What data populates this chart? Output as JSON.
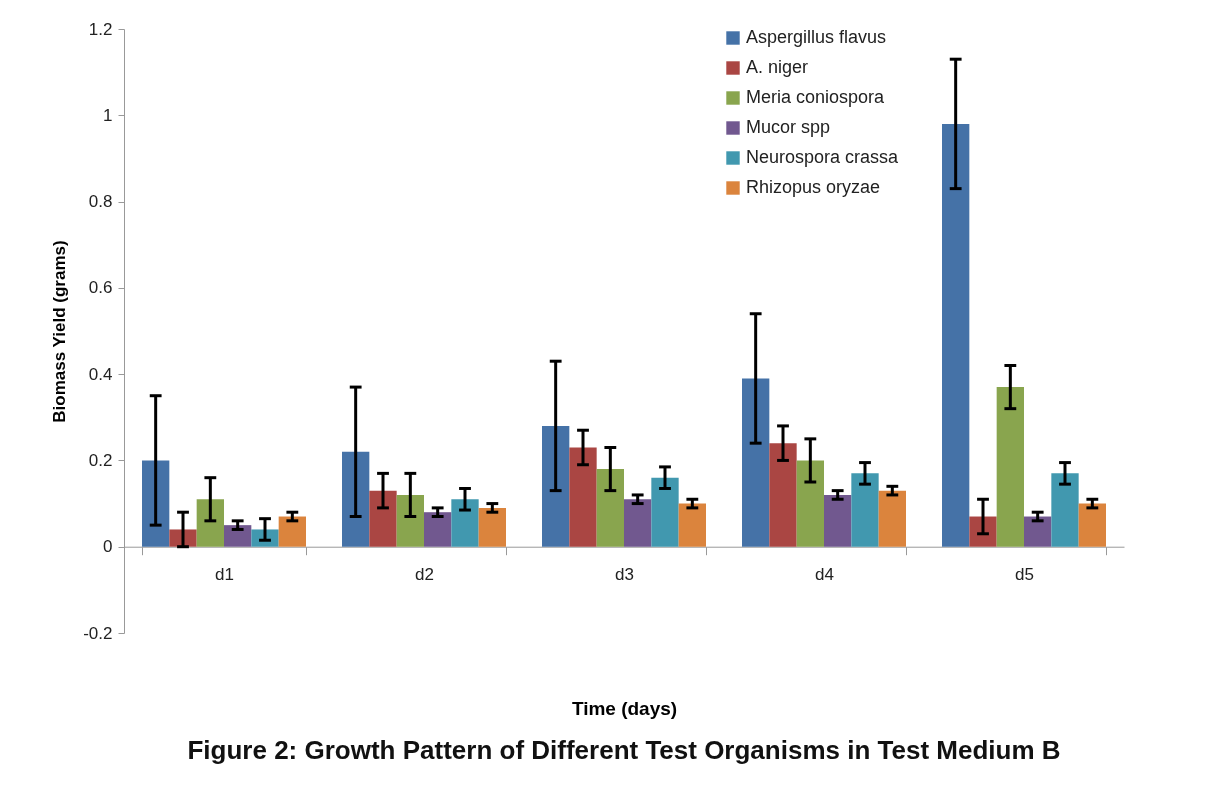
{
  "chart_data": {
    "type": "bar",
    "title": "Figure 2: Growth Pattern of Different Test Organisms in Test Medium  B",
    "xlabel": "Time (days)",
    "ylabel": "Biomass Yield (grams)",
    "categories": [
      "d1",
      "d2",
      "d3",
      "d4",
      "d5"
    ],
    "series": [
      {
        "name": "Aspergillus flavus",
        "color": "#4572a7",
        "values": [
          0.2,
          0.22,
          0.28,
          0.39,
          0.98
        ],
        "errors": [
          0.15,
          0.15,
          0.15,
          0.15,
          0.15
        ]
      },
      {
        "name": "A. niger",
        "color": "#aa4643",
        "values": [
          0.04,
          0.13,
          0.23,
          0.24,
          0.07
        ],
        "errors": [
          0.04,
          0.04,
          0.04,
          0.04,
          0.04
        ]
      },
      {
        "name": "Meria coniospora",
        "color": "#89a54e",
        "values": [
          0.11,
          0.12,
          0.18,
          0.2,
          0.37
        ],
        "errors": [
          0.05,
          0.05,
          0.05,
          0.05,
          0.05
        ]
      },
      {
        "name": "Mucor spp",
        "color": "#71588f",
        "values": [
          0.05,
          0.08,
          0.11,
          0.12,
          0.07
        ],
        "errors": [
          0.01,
          0.01,
          0.01,
          0.01,
          0.01
        ]
      },
      {
        "name": "Neurospora crassa",
        "color": "#4198af",
        "values": [
          0.04,
          0.11,
          0.16,
          0.17,
          0.17
        ],
        "errors": [
          0.025,
          0.025,
          0.025,
          0.025,
          0.025
        ]
      },
      {
        "name": "Rhizopus oryzae",
        "color": "#db843d",
        "values": [
          0.07,
          0.09,
          0.1,
          0.13,
          0.1
        ],
        "errors": [
          0.01,
          0.01,
          0.01,
          0.01,
          0.01
        ]
      }
    ],
    "ylim": [
      -0.2,
      1.2
    ],
    "yticks": [
      -0.2,
      {
        "value": 0,
        "label": "0"
      },
      0.2,
      0.4,
      0.6,
      0.8,
      {
        "value": 1,
        "label": "1"
      },
      1.2
    ],
    "grid": false,
    "legend": "top right"
  }
}
